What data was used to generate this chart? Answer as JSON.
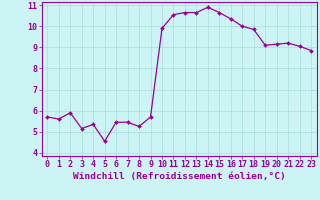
{
  "x": [
    0,
    1,
    2,
    3,
    4,
    5,
    6,
    7,
    8,
    9,
    10,
    11,
    12,
    13,
    14,
    15,
    16,
    17,
    18,
    19,
    20,
    21,
    22,
    23
  ],
  "y": [
    5.7,
    5.6,
    5.9,
    5.15,
    5.35,
    4.55,
    5.45,
    5.45,
    5.25,
    5.7,
    9.9,
    10.55,
    10.65,
    10.65,
    10.9,
    10.65,
    10.35,
    10.0,
    9.85,
    9.1,
    9.15,
    9.2,
    9.05,
    8.85
  ],
  "line_color": "#990099",
  "marker": "D",
  "marker_size": 2.0,
  "line_width": 0.9,
  "xlabel": "Windchill (Refroidissement éolien,°C)",
  "xlabel_fontsize": 6.8,
  "bg_color": "#cdf4f4",
  "grid_color": "#aadddd",
  "tick_color": "#990099",
  "xlim": [
    -0.5,
    23.5
  ],
  "ylim": [
    3.85,
    11.15
  ],
  "yticks": [
    4,
    5,
    6,
    7,
    8,
    9,
    10,
    11
  ],
  "xticks": [
    0,
    1,
    2,
    3,
    4,
    5,
    6,
    7,
    8,
    9,
    10,
    11,
    12,
    13,
    14,
    15,
    16,
    17,
    18,
    19,
    20,
    21,
    22,
    23
  ],
  "tick_fontsize": 6.0,
  "spine_color": "#990099"
}
